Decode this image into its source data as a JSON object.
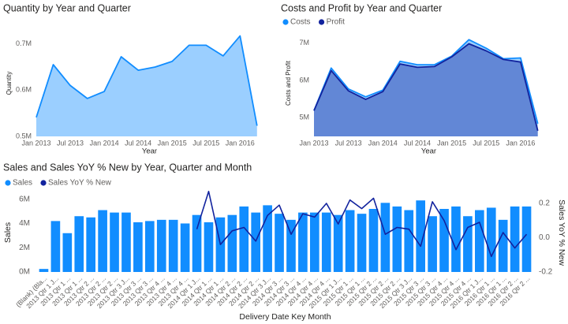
{
  "chart_data": [
    {
      "type": "area",
      "title": "Quantity by Year and Quarter",
      "x_label": "Year",
      "y_label": "Quantity",
      "x": [
        "2013-01",
        "2013-04",
        "2013-07",
        "2013-10",
        "2014-01",
        "2014-04",
        "2014-07",
        "2014-10",
        "2015-01",
        "2015-04",
        "2015-07",
        "2015-10",
        "2016-01",
        "2016-04"
      ],
      "values": [
        541000,
        655000,
        610000,
        582000,
        597000,
        672000,
        643000,
        650000,
        662000,
        697000,
        697000,
        674000,
        717000,
        523000
      ],
      "color": "#118dff",
      "xlim": [
        "2013-01",
        "2016-05"
      ],
      "xticks": [
        {
          "value": "2013-01",
          "label": "Jan 2013"
        },
        {
          "value": "2013-07",
          "label": "Jul 2013"
        },
        {
          "value": "2014-01",
          "label": "Jan 2014"
        },
        {
          "value": "2014-07",
          "label": "Jul 2014"
        },
        {
          "value": "2015-01",
          "label": "Jan 2015"
        },
        {
          "value": "2015-07",
          "label": "Jul 2015"
        },
        {
          "value": "2016-01",
          "label": "Jan 2016"
        }
      ],
      "ylim": [
        500000,
        730000
      ],
      "yticks": [
        {
          "value": 500000,
          "label": "0.5M"
        },
        {
          "value": 600000,
          "label": "0.6M"
        },
        {
          "value": 700000,
          "label": "0.7M"
        }
      ]
    },
    {
      "type": "area",
      "title": "Costs and Profit by Year and Quarter",
      "x_label": "Year",
      "y_label": "Costs and Profit",
      "legend": "top-left",
      "x": [
        "2013-01",
        "2013-04",
        "2013-07",
        "2013-10",
        "2014-01",
        "2014-04",
        "2014-07",
        "2014-10",
        "2015-01",
        "2015-04",
        "2015-07",
        "2015-10",
        "2016-01",
        "2016-04"
      ],
      "series": [
        {
          "name": "Costs",
          "color": "#118dff",
          "values": [
            5190000,
            6330000,
            5770000,
            5560000,
            5740000,
            6510000,
            6420000,
            6420000,
            6650000,
            7090000,
            6860000,
            6580000,
            6600000,
            4840000
          ]
        },
        {
          "name": "Profit",
          "color": "#12239e",
          "values": [
            5190000,
            6260000,
            5720000,
            5490000,
            5700000,
            6440000,
            6350000,
            6370000,
            6630000,
            6980000,
            6790000,
            6560000,
            6490000,
            4650000
          ]
        }
      ],
      "xlim": [
        "2013-01",
        "2016-05"
      ],
      "xticks": [
        {
          "value": "2013-01",
          "label": "Jan 2013"
        },
        {
          "value": "2013-07",
          "label": "Jul 2013"
        },
        {
          "value": "2014-01",
          "label": "Jan 2014"
        },
        {
          "value": "2014-07",
          "label": "Jul 2014"
        },
        {
          "value": "2015-01",
          "label": "Jan 2015"
        },
        {
          "value": "2015-07",
          "label": "Jul 2015"
        },
        {
          "value": "2016-01",
          "label": "Jan 2016"
        }
      ],
      "ylim": [
        4500000,
        7350000
      ],
      "yticks": [
        {
          "value": 5000000,
          "label": "5M"
        },
        {
          "value": 6000000,
          "label": "6M"
        },
        {
          "value": 7000000,
          "label": "7M"
        }
      ]
    },
    {
      "type": "combo",
      "title": "Sales and Sales YoY % New by Year, Quarter and Month",
      "x_label": "Delivery Date Key Month",
      "y_label": "Sales",
      "y2_label": "Sales YoY % New",
      "legend": "top-left",
      "categories": [
        "(Blank) (Bla...",
        "2013 Qtr 1 J...",
        "2013 Qtr 1 ...",
        "2013 Qtr 1 ...",
        "2013 Qtr 2 ...",
        "2013 Qtr 2 ...",
        "2013 Qtr 2 ...",
        "2013 Qtr 3 J...",
        "2013 Qtr 3 ...",
        "2013 Qtr 3 ...",
        "2013 Qtr 4 ...",
        "2013 Qtr 4 ...",
        "2013 Qtr 4 ...",
        "2014 Qtr 1 J...",
        "2014 Qtr 1 ...",
        "2014 Qtr 1 ...",
        "2014 Qtr 2 ...",
        "2014 Qtr 2 ...",
        "2014 Qtr 2 ...",
        "2014 Qtr 3 J...",
        "2014 Qtr 3 ...",
        "2014 Qtr 3 ...",
        "2014 Qtr 4 ...",
        "2014 Qtr 4 ...",
        "2014 Qtr 4 ...",
        "2015 Qtr 1 J...",
        "2015 Qtr 1 ...",
        "2015 Qtr 1 ...",
        "2015 Qtr 2 ...",
        "2015 Qtr 2 ...",
        "2015 Qtr 2 ...",
        "2015 Qtr 3 J...",
        "2015 Qtr 3 ...",
        "2015 Qtr 3 ...",
        "2015 Qtr 4 ...",
        "2015 Qtr 4 ...",
        "2015 Qtr 4 ...",
        "2016 Qtr 1 J...",
        "2016 Qtr 1 ...",
        "2016 Qtr 1 ...",
        "2016 Qtr 2 ...",
        "2016 Qtr 2 ..."
      ],
      "series": [
        {
          "name": "Sales",
          "type": "bar",
          "color": "#118dff",
          "values": [
            250000,
            4200000,
            3200000,
            4600000,
            4500000,
            5100000,
            4900000,
            4900000,
            4100000,
            4200000,
            4300000,
            4300000,
            4000000,
            4700000,
            4100000,
            4500000,
            4700000,
            5400000,
            4900000,
            5500000,
            4800000,
            4300000,
            4900000,
            4900000,
            4900000,
            4700000,
            5100000,
            4800000,
            5200000,
            5700000,
            5400000,
            5100000,
            5900000,
            4600000,
            5200000,
            5400000,
            4600000,
            5100000,
            5300000,
            4300000,
            5400000,
            5400000
          ]
        },
        {
          "name": "Sales YoY % New",
          "type": "line",
          "axis": "y2",
          "color": "#12239e",
          "values": [
            null,
            null,
            null,
            null,
            null,
            null,
            null,
            null,
            null,
            null,
            null,
            null,
            null,
            0.05,
            0.27,
            -0.04,
            0.04,
            0.06,
            -0.02,
            0.13,
            0.19,
            0.02,
            0.14,
            0.12,
            0.2,
            0.08,
            0.22,
            0.17,
            0.23,
            0.02,
            0.06,
            0.05,
            -0.05,
            0.21,
            0.1,
            -0.07,
            0.06,
            0.09,
            -0.11,
            0.03,
            -0.06,
            0.02
          ]
        }
      ],
      "ylim": [
        0,
        6500000
      ],
      "yticks": [
        {
          "value": 0,
          "label": "0M"
        },
        {
          "value": 2000000,
          "label": "2M"
        },
        {
          "value": 4000000,
          "label": "4M"
        },
        {
          "value": 6000000,
          "label": "6M"
        }
      ],
      "y2lim": [
        -0.2,
        0.26
      ],
      "y2ticks": [
        -0.2,
        {
          "value": 0,
          "label": "0.0"
        },
        0.2
      ]
    }
  ]
}
